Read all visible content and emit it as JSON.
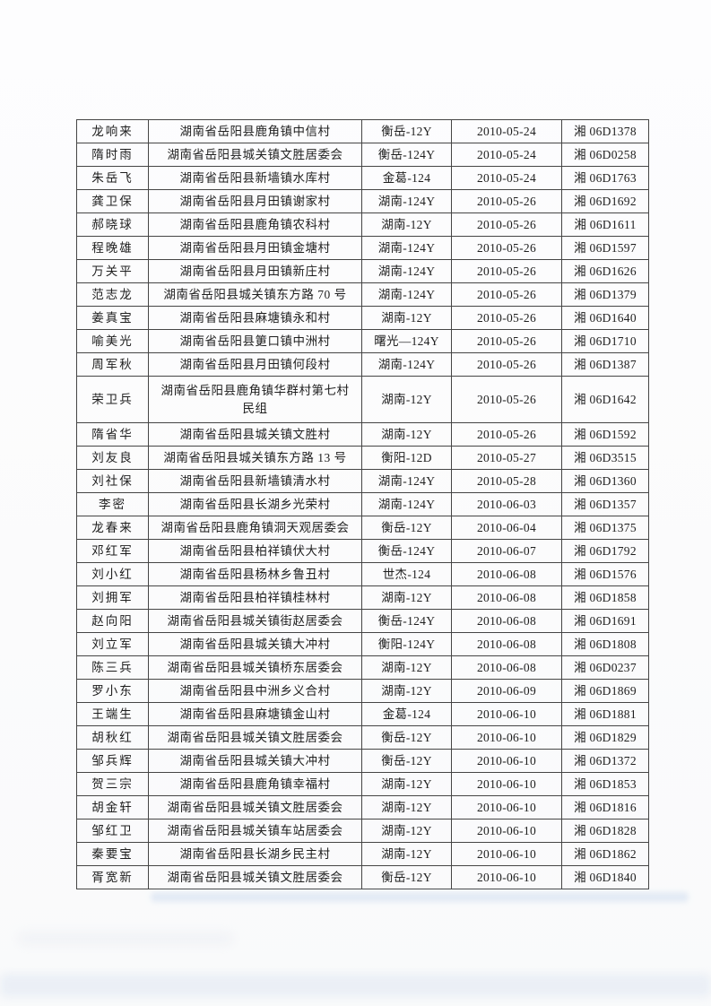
{
  "colors": {
    "paper": "#fcfcfd",
    "table_border": "#454545",
    "text": "#1e1e1e",
    "scan_artifact_blue": "#c7d8ee"
  },
  "table": {
    "rows": [
      {
        "name": "龙响来",
        "address": "湖南省岳阳县鹿角镇中信村",
        "model": "衡岳-12Y",
        "date": "2010-05-24",
        "plate": "湘 06D1378"
      },
      {
        "name": "隋时雨",
        "address": "湖南省岳阳县城关镇文胜居委会",
        "model": "衡岳-124Y",
        "date": "2010-05-24",
        "plate": "湘 06D0258"
      },
      {
        "name": "朱岳飞",
        "address": "湖南省岳阳县新墙镇水库村",
        "model": "金葛-124",
        "date": "2010-05-24",
        "plate": "湘 06D1763"
      },
      {
        "name": "龚卫保",
        "address": "湖南省岳阳县月田镇谢家村",
        "model": "湖南-124Y",
        "date": "2010-05-26",
        "plate": "湘 06D1692"
      },
      {
        "name": "郝晓球",
        "address": "湖南省岳阳县鹿角镇农科村",
        "model": "湖南-12Y",
        "date": "2010-05-26",
        "plate": "湘 06D1611"
      },
      {
        "name": "程晚雄",
        "address": "湖南省岳阳县月田镇金塘村",
        "model": "湖南-124Y",
        "date": "2010-05-26",
        "plate": "湘 06D1597"
      },
      {
        "name": "万关平",
        "address": "湖南省岳阳县月田镇新庄村",
        "model": "湖南-124Y",
        "date": "2010-05-26",
        "plate": "湘 06D1626"
      },
      {
        "name": "范志龙",
        "address": "湖南省岳阳县城关镇东方路 70 号",
        "model": "湖南-124Y",
        "date": "2010-05-26",
        "plate": "湘 06D1379"
      },
      {
        "name": "姜真宝",
        "address": "湖南省岳阳县麻塘镇永和村",
        "model": "湖南-12Y",
        "date": "2010-05-26",
        "plate": "湘 06D1640"
      },
      {
        "name": "喻美光",
        "address": "湖南省岳阳县筻口镇中洲村",
        "model": "曙光—124Y",
        "date": "2010-05-26",
        "plate": "湘 06D1710"
      },
      {
        "name": "周军秋",
        "address": "湖南省岳阳县月田镇何段村",
        "model": "湖南-124Y",
        "date": "2010-05-26",
        "plate": "湘 06D1387"
      },
      {
        "name": "荣卫兵",
        "address": "湖南省岳阳县鹿角镇华群村第七村",
        "address2": "民组",
        "model": "湖南-12Y",
        "date": "2010-05-26",
        "plate": "湘 06D1642"
      },
      {
        "name": "隋省华",
        "address": "湖南省岳阳县城关镇文胜村",
        "model": "湖南-12Y",
        "date": "2010-05-26",
        "plate": "湘 06D1592"
      },
      {
        "name": "刘友良",
        "address": "湖南省岳阳县城关镇东方路 13 号",
        "model": "衡阳-12D",
        "date": "2010-05-27",
        "plate": "湘 06D3515"
      },
      {
        "name": "刘社保",
        "address": "湖南省岳阳县新墙镇清水村",
        "model": "湖南-124Y",
        "date": "2010-05-28",
        "plate": "湘 06D1360"
      },
      {
        "name": "李密",
        "address": "湖南省岳阳县长湖乡光荣村",
        "model": "湖南-124Y",
        "date": "2010-06-03",
        "plate": "湘 06D1357"
      },
      {
        "name": "龙春来",
        "address": "湖南省岳阳县鹿角镇洞天观居委会",
        "model": "衡岳-12Y",
        "date": "2010-06-04",
        "plate": "湘 06D1375"
      },
      {
        "name": "邓红军",
        "address": "湖南省岳阳县柏祥镇伏大村",
        "model": "衡岳-124Y",
        "date": "2010-06-07",
        "plate": "湘 06D1792"
      },
      {
        "name": "刘小红",
        "address": "湖南省岳阳县杨林乡鲁丑村",
        "model": "世杰-124",
        "date": "2010-06-08",
        "plate": "湘 06D1576"
      },
      {
        "name": "刘拥军",
        "address": "湖南省岳阳县柏祥镇桂林村",
        "model": "湖南-12Y",
        "date": "2010-06-08",
        "plate": "湘 06D1858"
      },
      {
        "name": "赵向阳",
        "address": "湖南省岳阳县城关镇街赵居委会",
        "model": "衡岳-124Y",
        "date": "2010-06-08",
        "plate": "湘 06D1691"
      },
      {
        "name": "刘立军",
        "address": "湖南省岳阳县城关镇大冲村",
        "model": "衡阳-124Y",
        "date": "2010-06-08",
        "plate": "湘 06D1808"
      },
      {
        "name": "陈三兵",
        "address": "湖南省岳阳县城关镇桥东居委会",
        "model": "湖南-12Y",
        "date": "2010-06-08",
        "plate": "湘 06D0237"
      },
      {
        "name": "罗小东",
        "address": "湖南省岳阳县中洲乡义合村",
        "model": "湖南-12Y",
        "date": "2010-06-09",
        "plate": "湘 06D1869"
      },
      {
        "name": "王端生",
        "address": "湖南省岳阳县麻塘镇金山村",
        "model": "金葛-124",
        "date": "2010-06-10",
        "plate": "湘 06D1881"
      },
      {
        "name": "胡秋红",
        "address": "湖南省岳阳县城关镇文胜居委会",
        "model": "衡岳-12Y",
        "date": "2010-06-10",
        "plate": "湘 06D1829"
      },
      {
        "name": "邹兵辉",
        "address": "湖南省岳阳县城关镇大冲村",
        "model": "衡岳-12Y",
        "date": "2010-06-10",
        "plate": "湘 06D1372"
      },
      {
        "name": "贺三宗",
        "address": "湖南省岳阳县鹿角镇幸福村",
        "model": "湖南-12Y",
        "date": "2010-06-10",
        "plate": "湘 06D1853"
      },
      {
        "name": "胡金轩",
        "address": "湖南省岳阳县城关镇文胜居委会",
        "model": "湖南-12Y",
        "date": "2010-06-10",
        "plate": "湘 06D1816"
      },
      {
        "name": "邹红卫",
        "address": "湖南省岳阳县城关镇车站居委会",
        "model": "湖南-12Y",
        "date": "2010-06-10",
        "plate": "湘 06D1828"
      },
      {
        "name": "秦要宝",
        "address": "湖南省岳阳县长湖乡民主村",
        "model": "湖南-12Y",
        "date": "2010-06-10",
        "plate": "湘 06D1862"
      },
      {
        "name": "胥宽新",
        "address": "湖南省岳阳县城关镇文胜居委会",
        "model": "衡岳-12Y",
        "date": "2010-06-10",
        "plate": "湘 06D1840"
      }
    ]
  }
}
